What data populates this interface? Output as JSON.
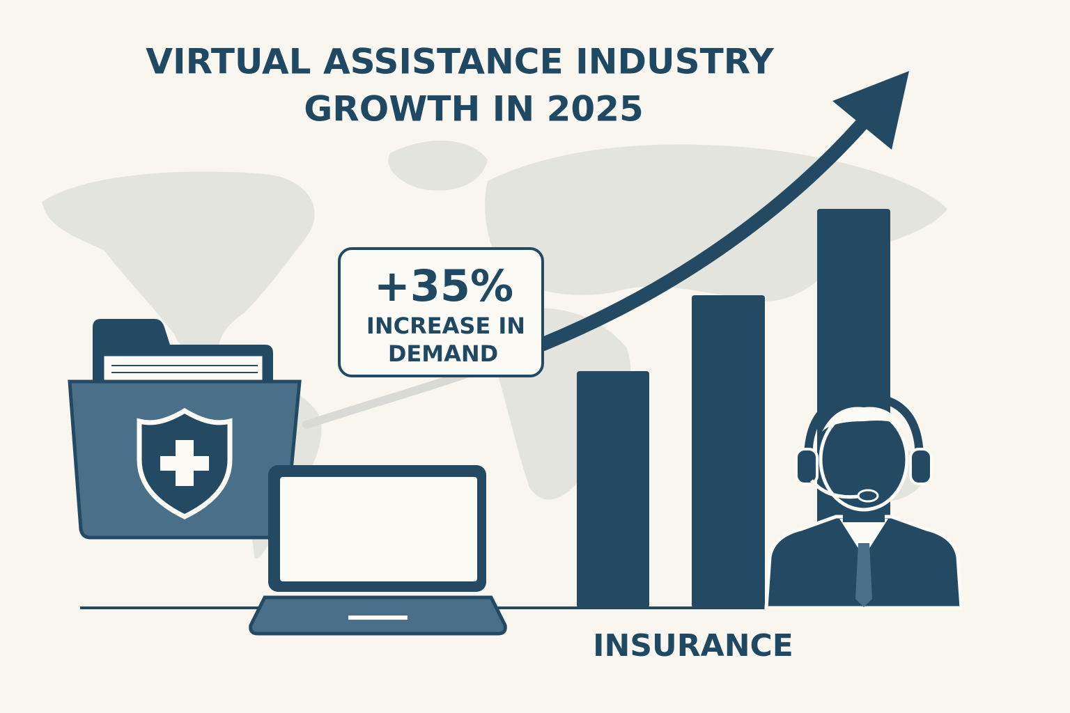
{
  "title": {
    "line1": "VIRTUAL ASSISTANCE INDUSTRY",
    "line2": "GROWTH IN 2025"
  },
  "callout": {
    "value": "+35%",
    "line1": "INCREASE IN",
    "line2": "DEMAND"
  },
  "label": "INSURANCE"
}
